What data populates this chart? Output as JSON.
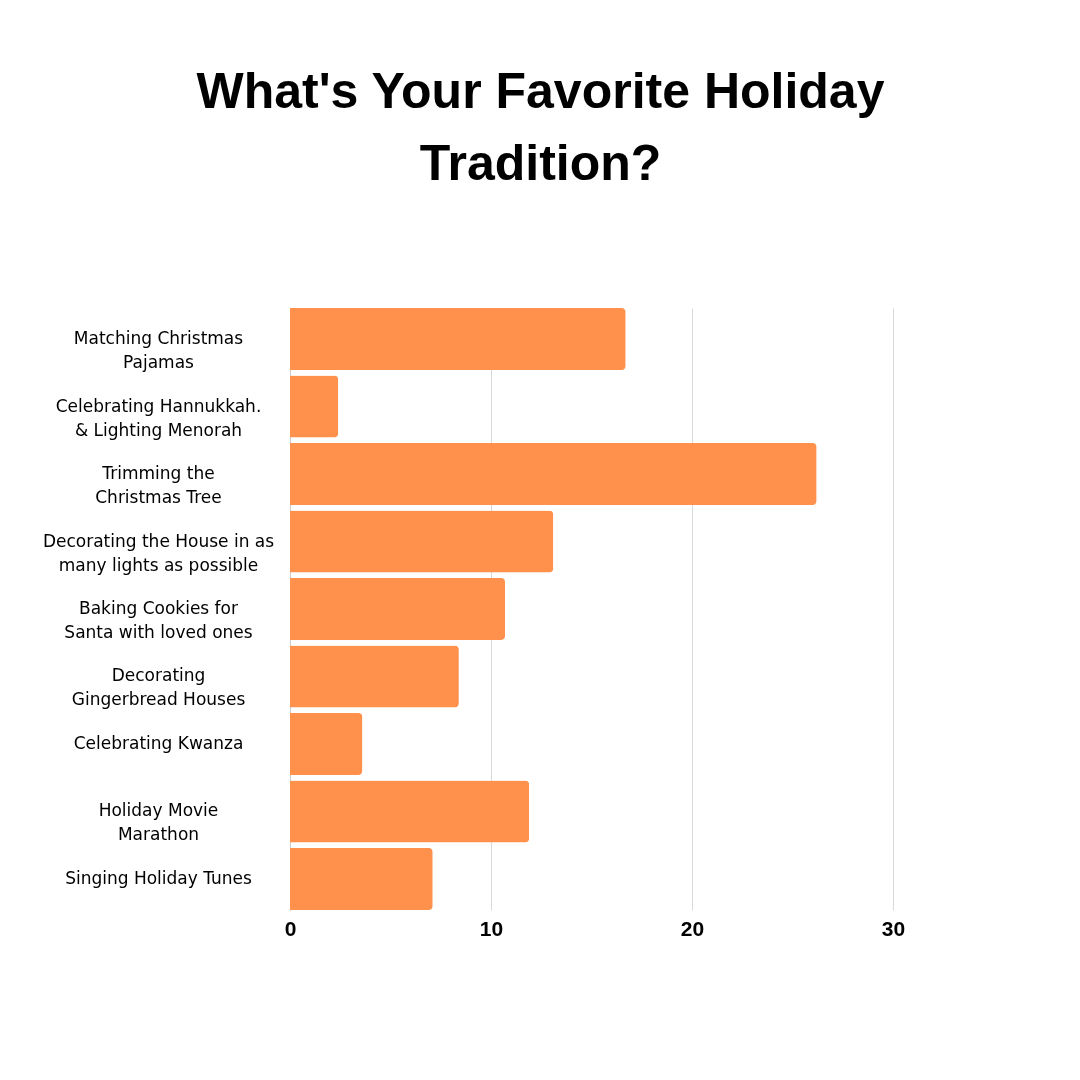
{
  "chart_data": {
    "type": "bar",
    "orientation": "horizontal",
    "title": "What's Your Favorite Holiday\nTradition?",
    "categories": [
      "Matching Christmas\nPajamas",
      "Celebrating Hannukkah.\n& Lighting Menorah",
      "Trimming the\nChristmas Tree",
      "Decorating the House in as\nmany lights as possible",
      "Baking Cookies for\nSanta with loved ones",
      "Decorating\nGingerbread Houses",
      "Celebrating Kwanza",
      "Holiday Movie\nMarathon",
      "Singing Holiday Tunes"
    ],
    "values": [
      16.7,
      2.4,
      26.2,
      13.1,
      10.7,
      8.4,
      3.6,
      11.9,
      7.1
    ],
    "color": "#ff914d",
    "xlim": [
      0,
      30
    ],
    "xticks": [
      0,
      10,
      20,
      30
    ],
    "grid": "x"
  }
}
